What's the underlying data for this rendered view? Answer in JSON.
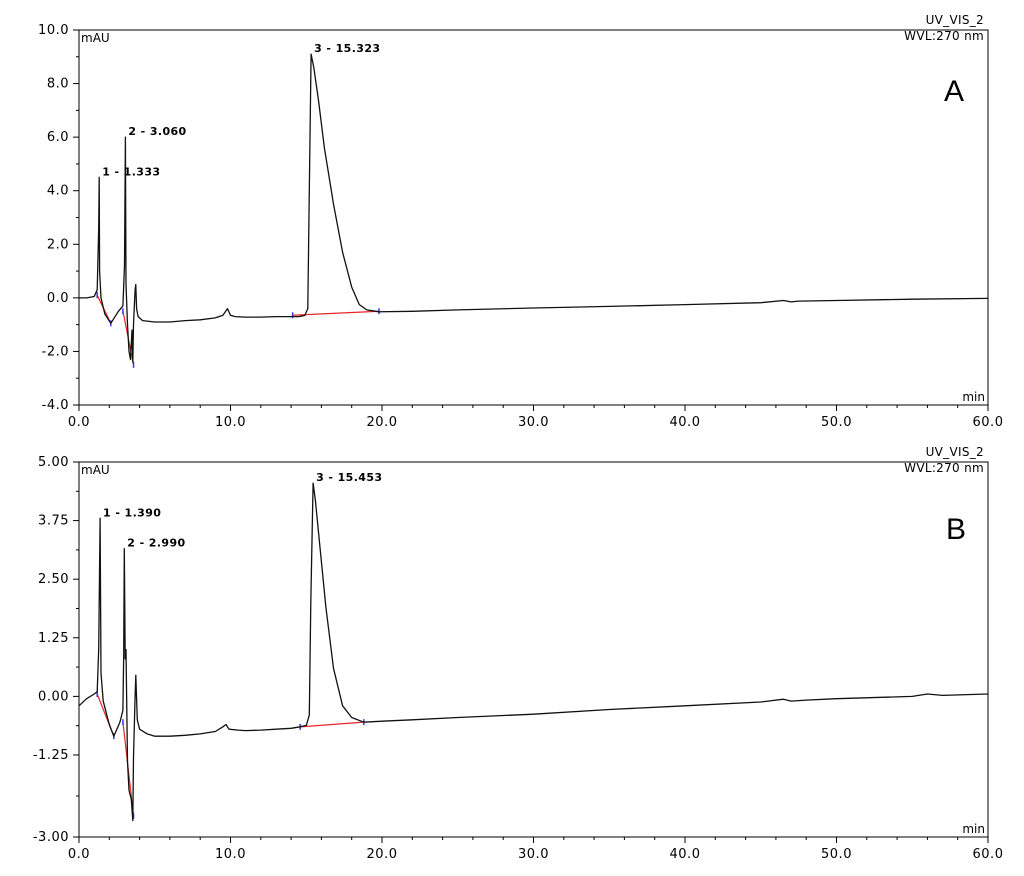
{
  "chart_data": [
    {
      "type": "line",
      "panel_label": "A",
      "channel": "UV_VIS_2",
      "wavelength": "WVL:270 nm",
      "ylabel": "mAU",
      "xlabel": "min",
      "xlim": [
        0,
        60
      ],
      "ylim": [
        -4,
        10
      ],
      "x_ticks": [
        0,
        10,
        20,
        30,
        40,
        50,
        60
      ],
      "x_tick_labels": [
        "0.0",
        "10.0",
        "20.0",
        "30.0",
        "40.0",
        "50.0",
        "60.0"
      ],
      "y_ticks": [
        -4,
        -2,
        0,
        2,
        4,
        6,
        8,
        10
      ],
      "y_tick_labels": [
        "-4.0",
        "-2.0",
        "0.0",
        "2.0",
        "4.0",
        "6.0",
        "8.0",
        "10.0"
      ],
      "peaks": [
        {
          "label": "1 - 1.333",
          "x": 1.333,
          "y": 4.5
        },
        {
          "label": "2 - 3.060",
          "x": 3.06,
          "y": 6.0
        },
        {
          "label": "3 - 15.323",
          "x": 15.323,
          "y": 9.1
        }
      ],
      "baselines": [
        {
          "x": [
            1.2,
            2.1
          ],
          "y": [
            0.1,
            -0.95
          ]
        },
        {
          "x": [
            2.9,
            3.6
          ],
          "y": [
            -0.5,
            -2.5
          ]
        },
        {
          "x": [
            14.1,
            19.8
          ],
          "y": [
            -0.65,
            -0.5
          ]
        }
      ],
      "series": [
        {
          "x": [
            0.0,
            0.5,
            1.0,
            1.2,
            1.3,
            1.333,
            1.36,
            1.45,
            1.7,
            2.1,
            2.6,
            2.9,
            3.0,
            3.06,
            3.1,
            3.2,
            3.3,
            3.4,
            3.5,
            3.55,
            3.6,
            3.7,
            3.75,
            3.8,
            3.9,
            4.2,
            5.0,
            6.0,
            7.0,
            8.0,
            9.0,
            9.5,
            9.8,
            10.0,
            10.3,
            11.0,
            12.0,
            13.0,
            14.0,
            14.5,
            14.9,
            15.1,
            15.2,
            15.323,
            15.5,
            15.8,
            16.2,
            16.8,
            17.4,
            18.0,
            18.5,
            19.0,
            19.8,
            22.0,
            25.0,
            30.0,
            35.0,
            40.0,
            45.0,
            46.5,
            47.0,
            47.5,
            50.0,
            55.0,
            60.0
          ],
          "y": [
            0.0,
            0.0,
            0.05,
            0.3,
            2.6,
            4.5,
            1.0,
            0.0,
            -0.6,
            -0.95,
            -0.5,
            -0.3,
            1.2,
            6.0,
            0.5,
            -1.0,
            -2.0,
            -2.3,
            -1.2,
            -2.4,
            -1.0,
            0.3,
            0.5,
            -0.4,
            -0.7,
            -0.85,
            -0.9,
            -0.9,
            -0.85,
            -0.82,
            -0.75,
            -0.65,
            -0.4,
            -0.65,
            -0.7,
            -0.72,
            -0.72,
            -0.7,
            -0.7,
            -0.7,
            -0.66,
            -0.4,
            4.0,
            9.1,
            8.6,
            7.4,
            5.6,
            3.5,
            1.7,
            0.4,
            -0.25,
            -0.45,
            -0.52,
            -0.5,
            -0.45,
            -0.38,
            -0.32,
            -0.25,
            -0.18,
            -0.1,
            -0.15,
            -0.12,
            -0.1,
            -0.05,
            -0.02
          ]
        }
      ]
    },
    {
      "type": "line",
      "panel_label": "B",
      "channel": "UV_VIS_2",
      "wavelength": "WVL:270 nm",
      "ylabel": "mAU",
      "xlabel": "min",
      "xlim": [
        0,
        60
      ],
      "ylim": [
        -3,
        5
      ],
      "x_ticks": [
        0,
        10,
        20,
        30,
        40,
        50,
        60
      ],
      "x_tick_labels": [
        "0.0",
        "10.0",
        "20.0",
        "30.0",
        "40.0",
        "50.0",
        "60.0"
      ],
      "y_ticks": [
        -3,
        -1.25,
        0,
        1.25,
        2.5,
        3.75,
        5
      ],
      "y_tick_labels": [
        "-3.00",
        "-1.25",
        "0.00",
        "1.25",
        "2.50",
        "3.75",
        "5.00"
      ],
      "peaks": [
        {
          "label": "1 - 1.390",
          "x": 1.39,
          "y": 3.8
        },
        {
          "label": "2 - 2.990",
          "x": 2.99,
          "y": 3.15
        },
        {
          "label": "3 - 15.453",
          "x": 15.453,
          "y": 4.55
        }
      ],
      "baselines": [
        {
          "x": [
            1.2,
            2.3
          ],
          "y": [
            0.05,
            -0.85
          ]
        },
        {
          "x": [
            2.9,
            3.6
          ],
          "y": [
            -0.55,
            -2.55
          ]
        },
        {
          "x": [
            14.6,
            18.8
          ],
          "y": [
            -0.65,
            -0.55
          ]
        }
      ],
      "series": [
        {
          "x": [
            0.0,
            0.5,
            1.0,
            1.2,
            1.3,
            1.39,
            1.45,
            1.6,
            2.0,
            2.3,
            2.7,
            2.9,
            2.95,
            2.99,
            3.05,
            3.1,
            3.2,
            3.3,
            3.45,
            3.55,
            3.6,
            3.7,
            3.75,
            3.85,
            4.0,
            4.5,
            5.0,
            6.0,
            7.0,
            8.0,
            9.0,
            9.5,
            9.7,
            9.9,
            10.5,
            11.0,
            12.0,
            13.0,
            14.0,
            14.6,
            15.0,
            15.2,
            15.3,
            15.453,
            15.6,
            15.9,
            16.3,
            16.8,
            17.4,
            18.0,
            18.8,
            20.0,
            22.0,
            25.0,
            30.0,
            35.0,
            40.0,
            45.0,
            46.5,
            47.0,
            48.0,
            50.0,
            55.0,
            56.0,
            57.0,
            60.0
          ],
          "y": [
            -0.2,
            -0.05,
            0.05,
            0.1,
            1.0,
            3.8,
            0.5,
            -0.1,
            -0.6,
            -0.85,
            -0.55,
            -0.3,
            0.9,
            3.15,
            0.8,
            1.0,
            -1.4,
            -2.0,
            -2.2,
            -2.65,
            -1.3,
            0.0,
            0.45,
            -0.5,
            -0.7,
            -0.8,
            -0.85,
            -0.85,
            -0.83,
            -0.8,
            -0.75,
            -0.65,
            -0.6,
            -0.7,
            -0.72,
            -0.73,
            -0.72,
            -0.7,
            -0.68,
            -0.65,
            -0.62,
            -0.4,
            2.0,
            4.55,
            4.2,
            3.2,
            1.9,
            0.6,
            -0.2,
            -0.45,
            -0.55,
            -0.53,
            -0.5,
            -0.45,
            -0.38,
            -0.28,
            -0.2,
            -0.12,
            -0.06,
            -0.1,
            -0.08,
            -0.05,
            0.0,
            0.05,
            0.02,
            0.05
          ]
        }
      ]
    }
  ]
}
